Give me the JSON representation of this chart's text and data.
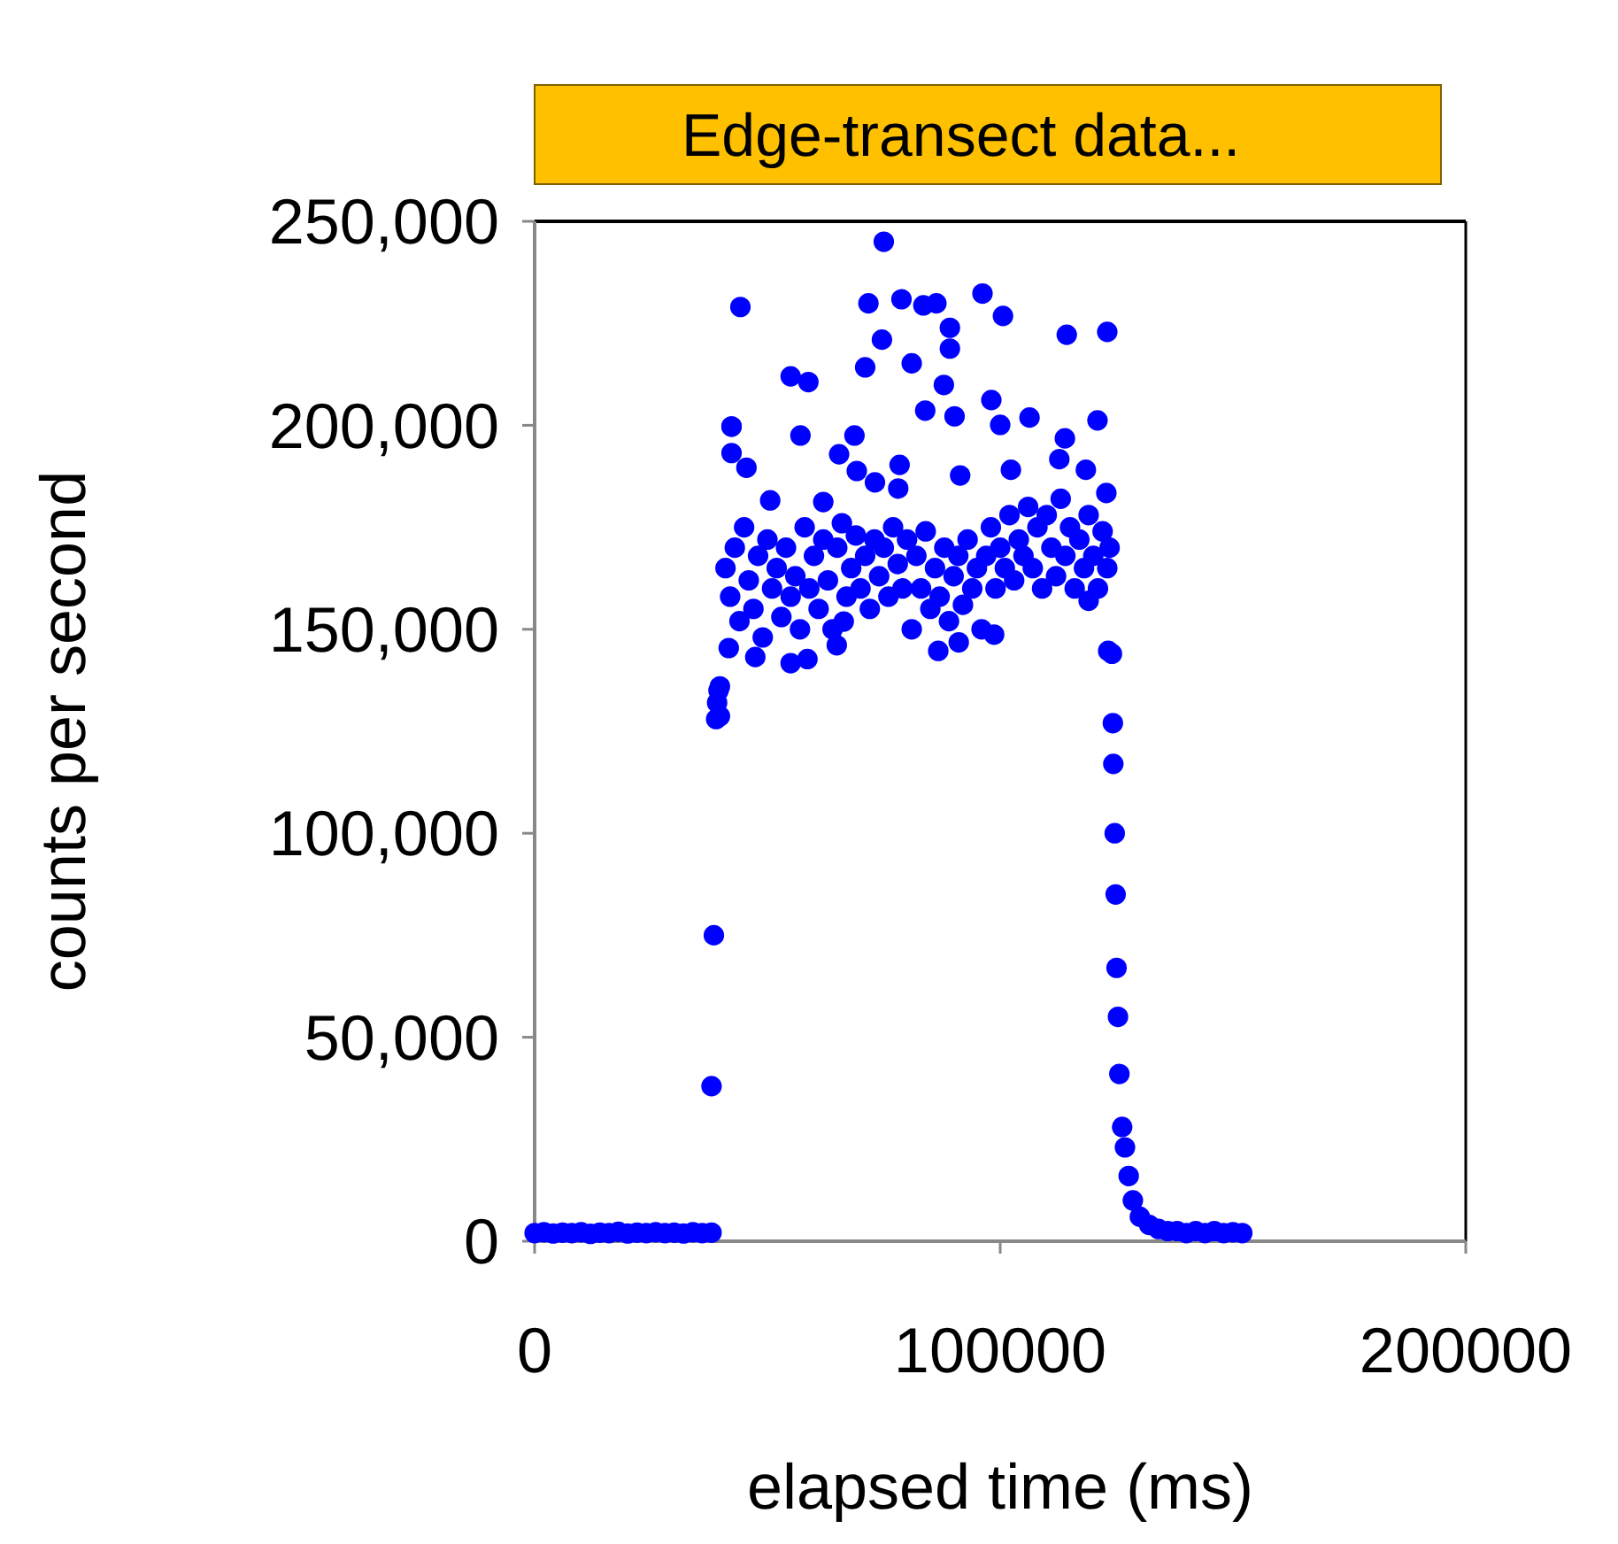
{
  "chart_data": {
    "type": "scatter",
    "title": "Edge-transect data...",
    "xlabel": "elapsed time (ms)",
    "ylabel": "counts per second",
    "xlim": [
      0,
      200000
    ],
    "xticks": [
      0,
      100000,
      200000
    ],
    "ylim": [
      0,
      250000
    ],
    "yticks": [
      {
        "value": 0,
        "label": "0"
      },
      {
        "value": 50000,
        "label": "50,000"
      },
      {
        "value": 100000,
        "label": "100,000"
      },
      {
        "value": 150000,
        "label": "150,000"
      },
      {
        "value": 200000,
        "label": "200,000"
      },
      {
        "value": 250000,
        "label": "250,000"
      }
    ],
    "grid": false,
    "marker": "circle",
    "series": [
      {
        "color": "#0000ff",
        "x": [
          0,
          2000,
          4000,
          6000,
          8000,
          10000,
          12000,
          14000,
          16000,
          18000,
          20000,
          22000,
          24000,
          26000,
          28000,
          30000,
          32000,
          34000,
          36000,
          38000,
          38000,
          38500,
          39000,
          39200,
          39500,
          39800,
          39800,
          41700,
          47400,
          55000,
          58600,
          64900,
          66400,
          86700,
          91100,
          98700,
          119000,
          42300,
          45500,
          42300,
          65400,
          113900,
          69200,
          73100,
          78400,
          91400,
          102300,
          78100,
          112700,
          118400,
          122800,
          62000,
          50600,
          75000,
          44200,
          71700,
          78800,
          83500,
          86300,
          96200,
          100600,
          114300,
          123000,
          89200,
          89200,
          74600,
          71000,
          81000,
          87900,
          55000,
          58800,
          83900,
          90200,
          98100,
          100000,
          106300,
          120900,
          42300,
          57100,
          68700,
          41000,
          42000,
          43000,
          44000,
          45000,
          46000,
          47000,
          48000,
          49000,
          50000,
          51000,
          52000,
          53000,
          54000,
          55000,
          56000,
          57000,
          58000,
          59000,
          60000,
          61000,
          62000,
          63000,
          64000,
          65000,
          66000,
          67000,
          68000,
          69000,
          70000,
          71000,
          72000,
          73000,
          74000,
          75000,
          76000,
          77000,
          78000,
          79000,
          80000,
          81000,
          82000,
          83000,
          84000,
          85000,
          86000,
          87000,
          88000,
          89000,
          90000,
          91000,
          92000,
          93000,
          94000,
          95000,
          96000,
          97000,
          98000,
          99000,
          100000,
          101000,
          102000,
          103000,
          104000,
          105000,
          106000,
          107000,
          108000,
          109000,
          110000,
          111000,
          112000,
          113000,
          114000,
          115000,
          116000,
          117000,
          118000,
          119000,
          120000,
          121000,
          122000,
          123000,
          123500,
          123200,
          124000,
          124200,
          124300,
          124600,
          124800,
          125000,
          125300,
          125600,
          126200,
          126800,
          127600,
          128500,
          130000,
          132000,
          134000,
          136000,
          138000,
          140000,
          142000,
          144000,
          146000,
          148000,
          150000,
          152000
        ],
        "values": [
          2000,
          2200,
          1900,
          2100,
          2000,
          2200,
          1800,
          2100,
          2000,
          2300,
          1900,
          2100,
          2000,
          2200,
          2000,
          2100,
          1900,
          2200,
          2000,
          2100,
          38000,
          75000,
          128000,
          132000,
          135000,
          136000,
          128700,
          145400,
          143200,
          141700,
          142700,
          146100,
          151900,
          144700,
          146800,
          148700,
          157000,
          193200,
          189600,
          199700,
          192900,
          196800,
          188800,
          186000,
          190300,
          187700,
          189100,
          184500,
          191700,
          189100,
          183400,
          181200,
          181600,
          245000,
          229000,
          229900,
          230900,
          229400,
          229900,
          232300,
          226800,
          222200,
          222900,
          223900,
          218800,
          221000,
          214200,
          215200,
          209900,
          212000,
          210600,
          203600,
          202200,
          206200,
          200100,
          201900,
          201200,
          199700,
          197500,
          197500,
          165000,
          158000,
          170000,
          152000,
          175000,
          162000,
          155000,
          168000,
          148000,
          172000,
          160000,
          165000,
          153000,
          170000,
          158000,
          163000,
          150000,
          175000,
          160000,
          168000,
          155000,
          172000,
          162000,
          150000,
          170000,
          176000,
          158000,
          165000,
          173000,
          160000,
          168000,
          155000,
          172000,
          163000,
          170000,
          158000,
          175000,
          166000,
          160000,
          172000,
          150000,
          168000,
          160000,
          174000,
          155000,
          165000,
          158000,
          170000,
          152000,
          163000,
          168000,
          156000,
          172000,
          160000,
          165000,
          150000,
          168000,
          175000,
          160000,
          170000,
          165000,
          178000,
          162000,
          172000,
          168000,
          180000,
          165000,
          175000,
          160000,
          178000,
          170000,
          163000,
          182000,
          168000,
          175000,
          160000,
          172000,
          165000,
          178000,
          168000,
          160000,
          174000,
          165000,
          170000,
          144700,
          144000,
          127000,
          117000,
          100000,
          85000,
          67000,
          55000,
          41000,
          28000,
          23000,
          16000,
          10000,
          6000,
          4000,
          3000,
          2500,
          2500,
          2000,
          2500,
          2000,
          2500,
          2000,
          2200,
          2000
        ]
      }
    ]
  }
}
